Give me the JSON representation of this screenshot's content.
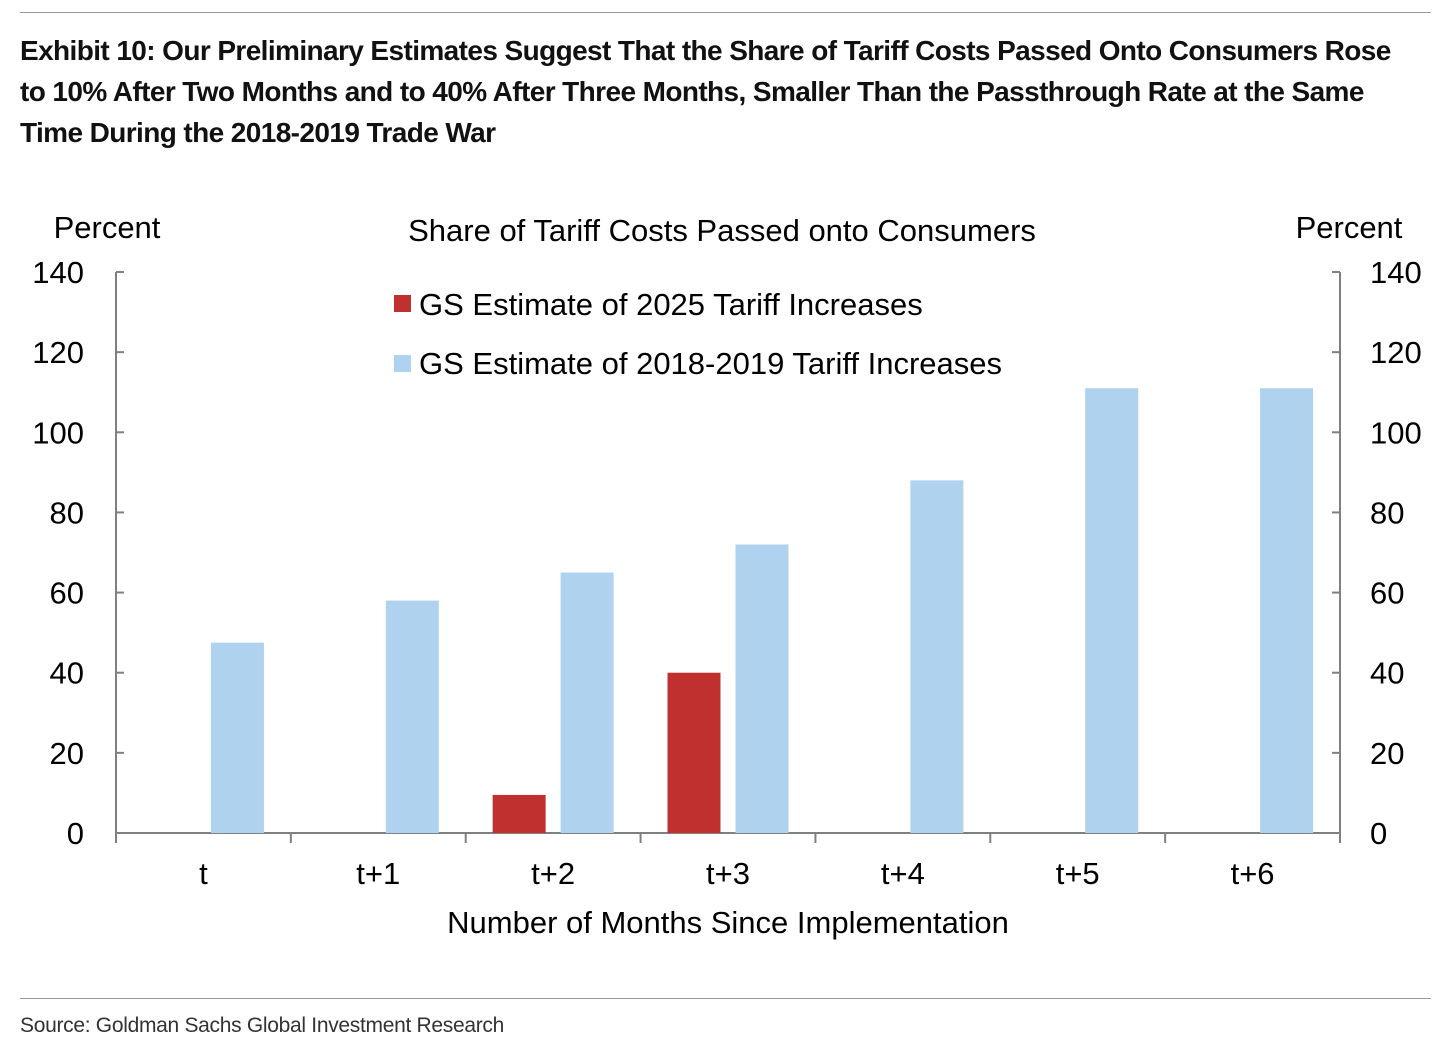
{
  "exhibit_title": "Exhibit 10: Our Preliminary Estimates Suggest That the Share of Tariff Costs Passed Onto Consumers Rose to 10% After Two Months and to 40% After Three Months, Smaller Than the Passthrough Rate at the Same Time During the 2018-2019 Trade War",
  "source": "Source: Goldman Sachs Global Investment Research",
  "chart_data": {
    "type": "bar",
    "title": "Share of Tariff Costs Passed onto Consumers",
    "xlabel": "Number of Months Since Implementation",
    "ylabel_left": "Percent",
    "ylabel_right": "Percent",
    "ylim": [
      0,
      140
    ],
    "yticks": [
      0,
      20,
      40,
      60,
      80,
      100,
      120,
      140
    ],
    "categories": [
      "t",
      "t+1",
      "t+2",
      "t+3",
      "t+4",
      "t+5",
      "t+6"
    ],
    "series": [
      {
        "name": "GS Estimate of 2025 Tariff Increases",
        "color": "#c0302f",
        "values": [
          null,
          null,
          9.5,
          40,
          null,
          null,
          null
        ]
      },
      {
        "name": "GS Estimate of 2018-2019 Tariff Increases",
        "color": "#afd3ef",
        "values": [
          47.5,
          58,
          65,
          72,
          88,
          111,
          111
        ]
      }
    ],
    "legend_position": "top-center",
    "grid": false
  }
}
